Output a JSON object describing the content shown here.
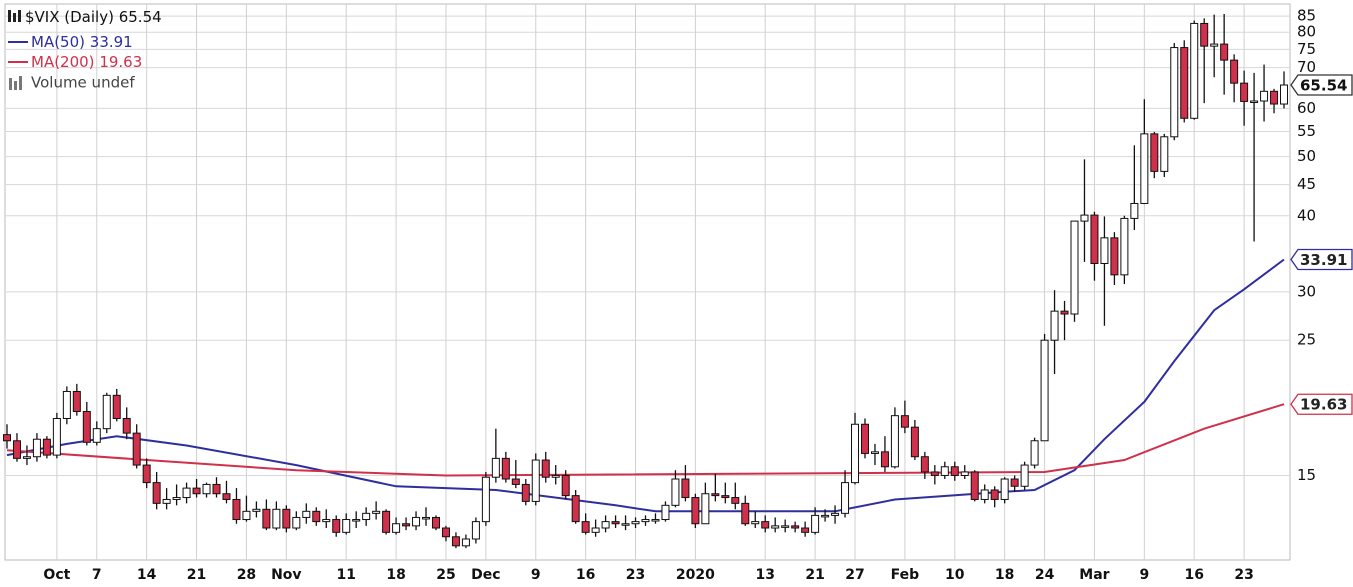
{
  "chart_data": {
    "type": "candlestick",
    "title": "$VIX (Daily)",
    "ohlc": {
      "open": [
        17.5,
        17.1,
        16.0,
        16.1,
        17.2,
        16.2,
        18.6,
        20.6,
        19.1,
        17.0,
        17.9,
        20.3,
        18.6,
        17.6,
        15.6,
        14.6,
        13.5,
        13.7,
        13.8,
        14.3,
        14.0,
        14.5,
        14.0,
        13.7,
        12.7,
        13.1,
        13.2,
        12.3,
        13.2,
        12.3,
        12.8,
        13.1,
        12.6,
        12.7,
        12.1,
        12.7,
        12.7,
        13.0,
        13.1,
        12.1,
        12.5,
        12.4,
        12.8,
        12.8,
        12.3,
        11.9,
        11.5,
        11.8,
        12.6,
        14.9,
        16.0,
        14.8,
        14.5,
        13.6,
        15.9,
        14.9,
        15.0,
        13.9,
        12.6,
        12.1,
        12.3,
        12.6,
        12.5,
        12.5,
        12.6,
        12.7,
        12.7,
        13.4,
        14.8,
        13.8,
        12.5,
        14.0,
        13.9,
        13.8,
        13.5,
        12.5,
        12.6,
        12.3,
        12.4,
        12.4,
        12.3,
        12.1,
        12.9,
        12.9,
        13.0,
        14.6,
        18.2,
        16.3,
        16.4,
        15.5,
        18.8,
        18.0,
        16.1,
        15.2,
        15.0,
        15.5,
        15.0,
        15.2,
        13.7,
        14.2,
        13.7,
        14.8,
        14.4,
        15.6,
        17.1,
        25.0,
        27.9,
        27.6,
        39.2,
        40.1,
        33.4,
        36.8,
        32.0,
        39.6,
        41.9,
        54.5,
        47.3,
        53.9,
        75.5,
        57.8,
        82.7,
        75.9,
        76.5,
        72.0,
        66.0,
        61.6,
        61.7,
        64.0,
        61.0
      ],
      "high": [
        18.2,
        17.6,
        16.8,
        17.6,
        17.4,
        19.0,
        21.0,
        21.2,
        19.8,
        18.4,
        20.5,
        20.8,
        19.4,
        18.2,
        16.0,
        15.2,
        14.3,
        14.5,
        14.6,
        14.8,
        14.6,
        14.9,
        14.7,
        14.3,
        13.9,
        13.6,
        13.7,
        13.6,
        13.4,
        13.1,
        13.5,
        13.3,
        13.2,
        12.9,
        13.0,
        13.1,
        13.3,
        13.6,
        13.2,
        12.8,
        12.8,
        13.1,
        13.3,
        12.9,
        12.4,
        12.1,
        12.0,
        12.8,
        15.2,
        17.9,
        16.4,
        15.9,
        14.8,
        16.3,
        16.4,
        15.6,
        15.3,
        14.2,
        13.0,
        12.7,
        12.9,
        12.9,
        12.9,
        12.8,
        12.9,
        13.0,
        13.6,
        15.3,
        15.6,
        14.0,
        14.6,
        15.1,
        14.6,
        14.6,
        13.9,
        13.1,
        12.9,
        12.8,
        12.7,
        12.6,
        12.6,
        13.3,
        13.2,
        13.4,
        15.3,
        19.0,
        18.6,
        16.9,
        17.4,
        19.4,
        19.9,
        18.5,
        16.4,
        15.6,
        15.8,
        15.8,
        15.6,
        15.3,
        14.5,
        14.4,
        14.9,
        15.0,
        15.8,
        17.3,
        25.6,
        30.2,
        29.0,
        39.2,
        49.5,
        40.6,
        39.9,
        37.6,
        40.0,
        52.2,
        62.1,
        54.9,
        54.5,
        76.8,
        77.6,
        83.6,
        84.3,
        85.5,
        85.7,
        73.6,
        69.2,
        68.6,
        70.8,
        64.6,
        69.0
      ],
      "low": [
        16.6,
        15.8,
        15.6,
        15.8,
        16.0,
        16.0,
        18.2,
        18.8,
        16.8,
        16.8,
        17.6,
        18.4,
        17.2,
        15.4,
        14.3,
        13.2,
        13.2,
        13.4,
        13.5,
        13.8,
        13.8,
        13.8,
        13.5,
        12.5,
        12.6,
        12.8,
        12.2,
        12.2,
        12.1,
        12.2,
        12.5,
        12.4,
        12.3,
        11.9,
        12.0,
        12.3,
        12.4,
        12.7,
        12.0,
        12.0,
        12.2,
        12.2,
        12.4,
        12.2,
        11.7,
        11.4,
        11.4,
        11.6,
        12.4,
        14.6,
        14.6,
        14.3,
        13.4,
        13.4,
        14.6,
        14.5,
        13.7,
        12.5,
        12.0,
        11.9,
        12.1,
        12.3,
        12.2,
        12.3,
        12.4,
        12.5,
        12.6,
        13.3,
        13.6,
        12.3,
        12.5,
        13.6,
        13.5,
        13.2,
        12.4,
        12.3,
        12.1,
        12.1,
        12.1,
        12.1,
        11.9,
        12.0,
        12.6,
        12.5,
        12.8,
        14.5,
        16.0,
        15.6,
        15.2,
        15.4,
        17.6,
        15.9,
        14.8,
        14.5,
        14.8,
        14.7,
        14.8,
        13.6,
        13.5,
        13.3,
        13.5,
        14.1,
        14.2,
        15.4,
        18.3,
        22.0,
        25.0,
        26.8,
        33.6,
        31.3,
        26.4,
        30.8,
        30.9,
        37.9,
        41.8,
        46.1,
        46.3,
        53.2,
        56.9,
        57.5,
        61.2,
        67.5,
        63.2,
        61.4,
        56.2,
        36.3,
        57.1,
        58.9,
        60.0
      ],
      "close": [
        17.1,
        16.0,
        16.1,
        17.2,
        16.2,
        18.6,
        20.6,
        19.1,
        17.0,
        17.9,
        20.3,
        18.6,
        17.6,
        15.6,
        14.6,
        13.5,
        13.7,
        13.8,
        14.3,
        14.0,
        14.5,
        14.0,
        13.7,
        12.7,
        13.1,
        13.2,
        12.3,
        13.2,
        12.3,
        12.8,
        13.1,
        12.6,
        12.7,
        12.1,
        12.7,
        12.7,
        13.0,
        13.1,
        12.1,
        12.5,
        12.4,
        12.8,
        12.8,
        12.3,
        11.9,
        11.5,
        11.8,
        12.6,
        14.9,
        16.0,
        14.8,
        14.5,
        13.6,
        15.9,
        14.9,
        15.0,
        13.9,
        12.6,
        12.1,
        12.3,
        12.6,
        12.5,
        12.5,
        12.6,
        12.7,
        12.7,
        13.4,
        14.8,
        13.8,
        12.5,
        14.0,
        13.9,
        13.8,
        13.5,
        12.5,
        12.6,
        12.3,
        12.4,
        12.4,
        12.3,
        12.1,
        12.9,
        12.9,
        13.0,
        14.6,
        18.2,
        16.3,
        16.4,
        15.5,
        18.8,
        18.0,
        16.1,
        15.2,
        15.0,
        15.5,
        15.0,
        15.2,
        13.7,
        14.2,
        13.7,
        14.8,
        14.4,
        15.6,
        17.1,
        25.0,
        27.9,
        27.6,
        39.2,
        40.1,
        33.4,
        36.8,
        32.0,
        39.6,
        41.9,
        54.5,
        47.3,
        53.9,
        75.5,
        57.8,
        82.7,
        75.9,
        76.5,
        72.0,
        66.0,
        61.6,
        61.7,
        64.0,
        61.0,
        65.54
      ]
    },
    "up_color": "#ffffff",
    "down_color": "#d0304a",
    "series": [
      {
        "name": "MA(50)",
        "color": "#2e2e9e",
        "x": [
          0,
          6,
          11,
          18,
          29,
          39,
          49,
          61,
          65,
          83,
          89,
          100,
          103,
          107,
          110,
          114,
          117,
          121,
          124,
          128
        ],
        "values": [
          16.2,
          16.9,
          17.4,
          16.8,
          15.6,
          14.4,
          14.2,
          13.4,
          13.1,
          13.1,
          13.7,
          14.1,
          14.2,
          15.3,
          17.2,
          19.8,
          23.1,
          28.0,
          30.3,
          33.91
        ]
      },
      {
        "name": "MA(200)",
        "color": "#d0304a",
        "x": [
          0,
          14,
          29,
          44,
          104,
          112,
          120,
          128
        ],
        "values": [
          16.5,
          15.9,
          15.3,
          15.0,
          15.2,
          15.9,
          17.9,
          19.63
        ]
      }
    ],
    "volume_label": "Volume undef",
    "xticks": [
      {
        "value": 5,
        "label": "Oct"
      },
      {
        "value": 9,
        "label": "7"
      },
      {
        "value": 14,
        "label": "14"
      },
      {
        "value": 19,
        "label": "21"
      },
      {
        "value": 24,
        "label": "28"
      },
      {
        "value": 28,
        "label": "Nov"
      },
      {
        "value": 34,
        "label": "11"
      },
      {
        "value": 39,
        "label": "18"
      },
      {
        "value": 44,
        "label": "25"
      },
      {
        "value": 48,
        "label": "Dec"
      },
      {
        "value": 53,
        "label": "9"
      },
      {
        "value": 58,
        "label": "16"
      },
      {
        "value": 63,
        "label": "23"
      },
      {
        "value": 69,
        "label": "2020"
      },
      {
        "value": 76,
        "label": "13"
      },
      {
        "value": 81,
        "label": "21"
      },
      {
        "value": 85,
        "label": "27"
      },
      {
        "value": 90,
        "label": "Feb"
      },
      {
        "value": 95,
        "label": "10"
      },
      {
        "value": 100,
        "label": "18"
      },
      {
        "value": 104,
        "label": "24"
      },
      {
        "value": 109,
        "label": "Mar"
      },
      {
        "value": 114,
        "label": "9"
      },
      {
        "value": 119,
        "label": "16"
      },
      {
        "value": 124,
        "label": "23"
      }
    ],
    "xlim": [
      -0.2,
      128.6
    ],
    "ylim": [
      10.9,
      89
    ],
    "yticks": [
      15,
      25,
      30,
      40,
      45,
      50,
      55,
      60,
      70,
      75,
      80,
      85
    ],
    "log_scale": true,
    "grid": true
  }
}
